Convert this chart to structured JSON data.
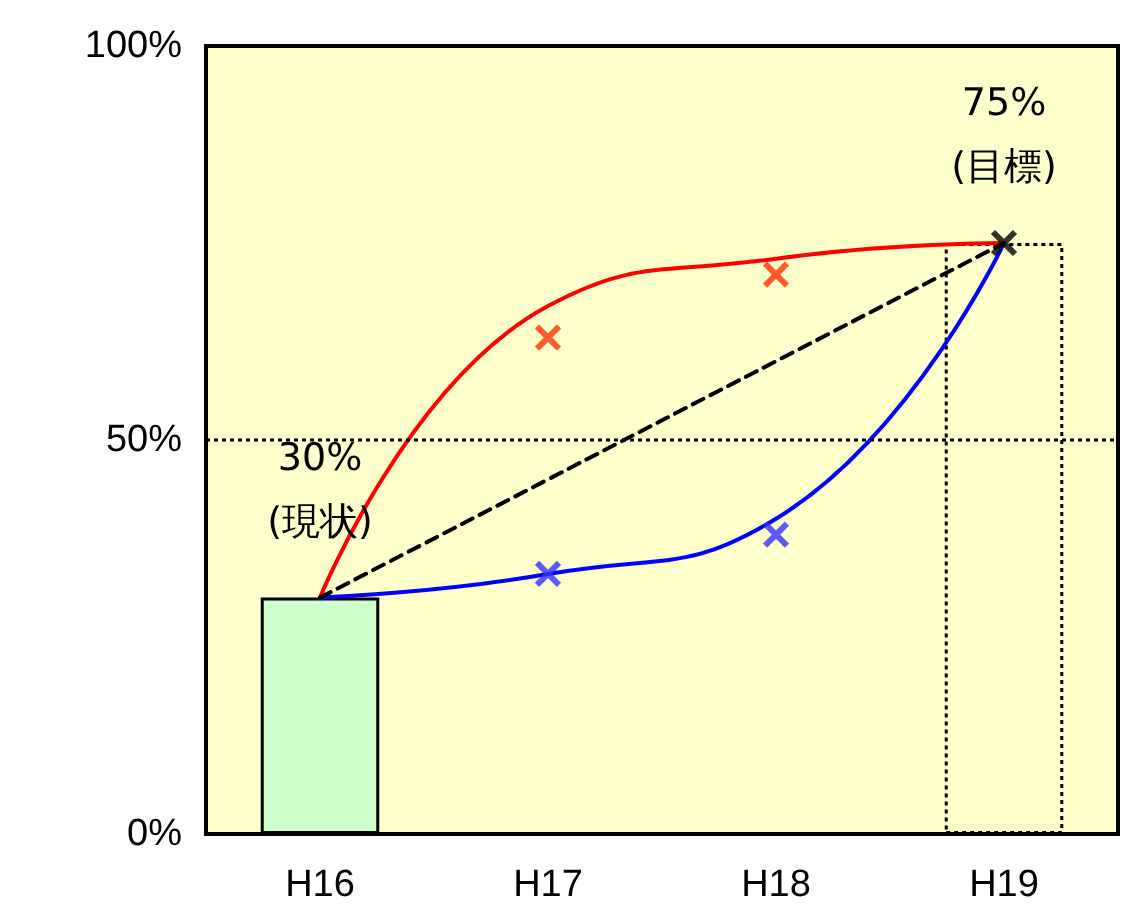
{
  "chart_data": {
    "type": "bar",
    "categories": [
      "H16",
      "H17",
      "H18",
      "H19"
    ],
    "series": [
      {
        "color": "#ccffcc",
        "values": [
          30,
          null,
          null,
          null
        ]
      },
      {
        "color": "#000000",
        "line_style": "dotted",
        "values": [
          null,
          null,
          null,
          75
        ]
      },
      {
        "type": "line",
        "color": "#ff0000",
        "marker": "none",
        "values": [
          30,
          67,
          73,
          75
        ]
      },
      {
        "type": "line",
        "color": "#0000ff",
        "marker": "none",
        "values": [
          30,
          33,
          40,
          75
        ]
      },
      {
        "type": "line",
        "color": "#000000",
        "marker": "none",
        "line_style": "dashed",
        "values": [
          30,
          45,
          60,
          75
        ]
      },
      {
        "type": "scatter",
        "color": "#ff3300",
        "marker": "cross",
        "values": [
          null,
          63,
          71,
          null
        ]
      },
      {
        "type": "scatter",
        "color": "#3333ff",
        "marker": "cross",
        "values": [
          null,
          33,
          38,
          null
        ]
      },
      {
        "type": "scatter",
        "color": "#000000",
        "marker": "cross",
        "values": [
          null,
          null,
          null,
          75
        ]
      }
    ],
    "ylim": [
      0,
      100
    ],
    "yticks": [
      {
        "value": 0,
        "label": "0%"
      },
      {
        "value": 50,
        "label": "50%"
      },
      {
        "value": 100,
        "label": "100%"
      }
    ],
    "ref_lines": [
      {
        "axis": "y",
        "value": 50,
        "color": "#000000",
        "line_style": "dotted"
      }
    ],
    "annotations": [
      {
        "text": "30%\n(現状)",
        "x": "H16",
        "y": 30
      },
      {
        "text": "75%\n(目標)",
        "x": "H19",
        "y": 75
      }
    ],
    "grid": false
  }
}
